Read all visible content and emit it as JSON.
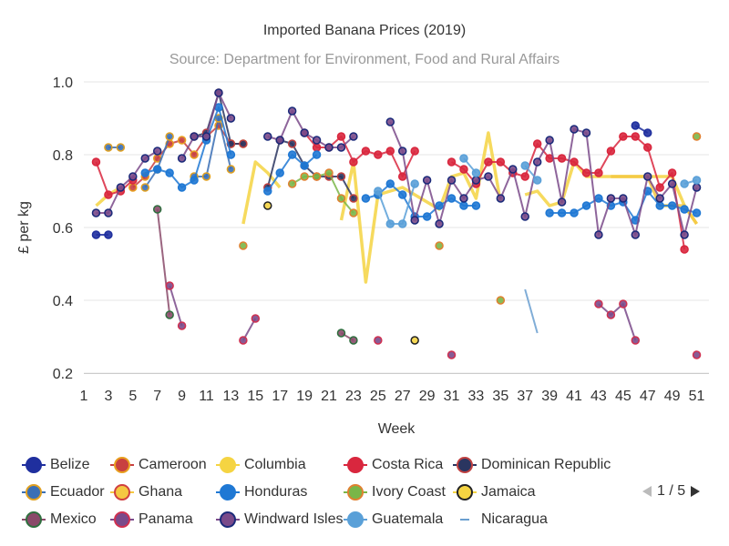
{
  "chart_data": {
    "type": "line",
    "title": "Imported Banana Prices (2019)",
    "subtitle": "Source: Department for Environment, Food and Rural Affairs",
    "xlabel": "Week",
    "ylabel": "£ per kg",
    "x_ticks": [
      1,
      3,
      5,
      7,
      9,
      11,
      13,
      15,
      17,
      19,
      21,
      23,
      25,
      27,
      29,
      31,
      33,
      35,
      37,
      39,
      41,
      43,
      45,
      47,
      49,
      51
    ],
    "y_ticks": [
      "0.2",
      "0.4",
      "0.6",
      "0.8",
      "1.0"
    ],
    "xlim": [
      1,
      52
    ],
    "ylim": [
      0.2,
      1.0
    ],
    "grid": true,
    "legend_position": "bottom",
    "legend_page": "1 / 5",
    "series": [
      {
        "name": "Belize",
        "color": "#1f2f9e",
        "border": "#1f2f9e",
        "data": [
          [
            2,
            0.58
          ],
          [
            3,
            0.58
          ],
          [
            null,
            null
          ],
          [
            46,
            0.88
          ],
          [
            47,
            0.86
          ]
        ]
      },
      {
        "name": "Cameroon",
        "color": "#c84040",
        "border": "#e8a020",
        "data": [
          [
            5,
            0.71
          ],
          [
            6,
            0.74
          ],
          [
            7,
            0.79
          ],
          [
            8,
            0.83
          ],
          [
            9,
            0.84
          ],
          [
            10,
            0.8
          ],
          [
            11,
            0.85
          ],
          [
            12,
            0.88
          ],
          [
            13,
            0.83
          ],
          [
            14,
            0.83
          ]
        ]
      },
      {
        "name": "Columbia",
        "color": "#f5d442",
        "border": "#f5d442",
        "data": [
          [
            2,
            0.66
          ],
          [
            3,
            0.69
          ],
          [
            4,
            0.71
          ],
          [
            null,
            null
          ],
          [
            14,
            0.61
          ],
          [
            15,
            0.78
          ],
          [
            16,
            0.75
          ],
          [
            17,
            0.71
          ],
          [
            null,
            null
          ],
          [
            22,
            0.62
          ],
          [
            23,
            0.78
          ],
          [
            24,
            0.45
          ],
          [
            25,
            0.69
          ],
          [
            26,
            0.7
          ],
          [
            27,
            0.71
          ],
          [
            28,
            0.69
          ],
          [
            29,
            0.67
          ],
          [
            30,
            0.65
          ],
          [
            31,
            0.74
          ],
          [
            32,
            0.75
          ],
          [
            33,
            0.68
          ],
          [
            34,
            0.86
          ],
          [
            35,
            0.67
          ],
          [
            null,
            null
          ],
          [
            37,
            0.69
          ],
          [
            38,
            0.7
          ],
          [
            39,
            0.66
          ],
          [
            40,
            0.67
          ],
          [
            41,
            0.78
          ],
          [
            42,
            0.74
          ],
          [
            43,
            0.74
          ],
          [
            44,
            0.74
          ],
          [
            45,
            0.74
          ],
          [
            46,
            0.74
          ],
          [
            47,
            0.74
          ],
          [
            48,
            0.74
          ],
          [
            49,
            0.74
          ],
          [
            50,
            0.66
          ],
          [
            51,
            0.61
          ]
        ]
      },
      {
        "name": "Costa Rica",
        "color": "#d9273e",
        "border": "#d9273e",
        "data": [
          [
            2,
            0.78
          ],
          [
            3,
            0.69
          ],
          [
            4,
            0.7
          ],
          [
            5,
            0.73
          ],
          [
            null,
            null
          ],
          [
            19,
            0.86
          ],
          [
            20,
            0.82
          ],
          [
            21,
            0.82
          ],
          [
            22,
            0.85
          ],
          [
            23,
            0.78
          ],
          [
            24,
            0.81
          ],
          [
            25,
            0.8
          ],
          [
            26,
            0.81
          ],
          [
            27,
            0.74
          ],
          [
            28,
            0.81
          ],
          [
            null,
            null
          ],
          [
            31,
            0.78
          ],
          [
            32,
            0.76
          ],
          [
            33,
            0.72
          ],
          [
            34,
            0.78
          ],
          [
            35,
            0.78
          ],
          [
            36,
            0.75
          ],
          [
            37,
            0.74
          ],
          [
            38,
            0.83
          ],
          [
            39,
            0.79
          ],
          [
            40,
            0.79
          ],
          [
            41,
            0.78
          ],
          [
            42,
            0.75
          ],
          [
            43,
            0.75
          ],
          [
            44,
            0.81
          ],
          [
            45,
            0.85
          ],
          [
            46,
            0.85
          ],
          [
            47,
            0.82
          ],
          [
            48,
            0.71
          ],
          [
            49,
            0.75
          ],
          [
            50,
            0.54
          ]
        ]
      },
      {
        "name": "Dominican Republic",
        "color": "#2a3560",
        "border": "#c04040",
        "data": [
          [
            10,
            0.85
          ],
          [
            11,
            0.86
          ],
          [
            12,
            0.97
          ],
          [
            13,
            0.83
          ],
          [
            14,
            0.83
          ],
          [
            null,
            null
          ],
          [
            16,
            0.71
          ],
          [
            17,
            0.84
          ],
          [
            18,
            0.83
          ],
          [
            19,
            0.77
          ],
          [
            20,
            0.74
          ],
          [
            21,
            0.74
          ],
          [
            22,
            0.74
          ],
          [
            23,
            0.68
          ]
        ]
      },
      {
        "name": "Ecuador",
        "color": "#3a6fb5",
        "border": "#e0a020",
        "data": [
          [
            3,
            0.82
          ],
          [
            4,
            0.82
          ],
          [
            null,
            null
          ],
          [
            6,
            0.71
          ],
          [
            7,
            0.76
          ],
          [
            8,
            0.85
          ],
          [
            null,
            null
          ],
          [
            10,
            0.74
          ],
          [
            11,
            0.74
          ],
          [
            12,
            0.9
          ],
          [
            13,
            0.76
          ]
        ]
      },
      {
        "name": "Ghana",
        "color": "#f5c842",
        "border": "#d04040",
        "data": [
          [
            44,
            0.74
          ],
          [
            45,
            0.74
          ],
          [
            46,
            0.74
          ],
          [
            47,
            0.74
          ],
          [
            48,
            0.66
          ],
          [
            49,
            0.66
          ],
          [
            50,
            0.66
          ],
          [
            51,
            0.61
          ]
        ]
      },
      {
        "name": "Honduras",
        "color": "#1f78d4",
        "border": "#1f78d4",
        "data": [
          [
            6,
            0.75
          ],
          [
            7,
            0.76
          ],
          [
            8,
            0.75
          ],
          [
            9,
            0.71
          ],
          [
            10,
            0.73
          ],
          [
            11,
            0.84
          ],
          [
            12,
            0.93
          ],
          [
            13,
            0.8
          ],
          [
            null,
            null
          ],
          [
            16,
            0.7
          ],
          [
            17,
            0.75
          ],
          [
            18,
            0.8
          ],
          [
            19,
            0.77
          ],
          [
            20,
            0.8
          ],
          [
            null,
            null
          ],
          [
            24,
            0.68
          ],
          [
            25,
            0.69
          ],
          [
            26,
            0.72
          ],
          [
            27,
            0.69
          ],
          [
            28,
            0.63
          ],
          [
            29,
            0.63
          ],
          [
            30,
            0.66
          ],
          [
            31,
            0.68
          ],
          [
            32,
            0.66
          ],
          [
            33,
            0.66
          ],
          [
            null,
            null
          ],
          [
            39,
            0.64
          ],
          [
            40,
            0.64
          ],
          [
            41,
            0.64
          ],
          [
            42,
            0.66
          ],
          [
            43,
            0.68
          ],
          [
            44,
            0.66
          ],
          [
            45,
            0.67
          ],
          [
            46,
            0.62
          ],
          [
            47,
            0.7
          ],
          [
            48,
            0.66
          ],
          [
            49,
            0.66
          ],
          [
            50,
            0.65
          ],
          [
            51,
            0.64
          ]
        ]
      },
      {
        "name": "Ivory Coast",
        "color": "#7ab648",
        "border": "#e08030",
        "data": [
          [
            14,
            0.55
          ],
          [
            null,
            null
          ],
          [
            18,
            0.72
          ],
          [
            19,
            0.74
          ],
          [
            20,
            0.74
          ],
          [
            21,
            0.75
          ],
          [
            22,
            0.68
          ],
          [
            23,
            0.64
          ],
          [
            null,
            null
          ],
          [
            30,
            0.55
          ],
          [
            null,
            null
          ],
          [
            35,
            0.4
          ],
          [
            null,
            null
          ],
          [
            51,
            0.85
          ]
        ]
      },
      {
        "name": "Jamaica",
        "color": "#f5d442",
        "border": "#222222",
        "data": [
          [
            16,
            0.66
          ],
          [
            null,
            null
          ],
          [
            28,
            0.29
          ]
        ]
      },
      {
        "name": "Mexico",
        "color": "#8a4a6a",
        "border": "#2f6f3f",
        "data": [
          [
            7,
            0.65
          ],
          [
            8,
            0.36
          ],
          [
            null,
            null
          ],
          [
            22,
            0.31
          ],
          [
            23,
            0.29
          ]
        ]
      },
      {
        "name": "Panama",
        "color": "#7a4a8a",
        "border": "#d03050",
        "data": [
          [
            8,
            0.44
          ],
          [
            9,
            0.33
          ],
          [
            null,
            null
          ],
          [
            14,
            0.29
          ],
          [
            15,
            0.35
          ],
          [
            null,
            null
          ],
          [
            25,
            0.29
          ],
          [
            null,
            null
          ],
          [
            31,
            0.25
          ],
          [
            null,
            null
          ],
          [
            43,
            0.39
          ],
          [
            44,
            0.36
          ],
          [
            45,
            0.39
          ],
          [
            46,
            0.29
          ],
          [
            null,
            null
          ],
          [
            51,
            0.25
          ]
        ]
      },
      {
        "name": "Windward Isles",
        "color": "#7a4a8a",
        "border": "#1a2a7a",
        "data": [
          [
            2,
            0.64
          ],
          [
            3,
            0.64
          ],
          [
            4,
            0.71
          ],
          [
            5,
            0.74
          ],
          [
            6,
            0.79
          ],
          [
            7,
            0.81
          ],
          [
            null,
            null
          ],
          [
            9,
            0.79
          ],
          [
            10,
            0.85
          ],
          [
            11,
            0.85
          ],
          [
            12,
            0.97
          ],
          [
            13,
            0.9
          ],
          [
            null,
            null
          ],
          [
            16,
            0.85
          ],
          [
            17,
            0.84
          ],
          [
            18,
            0.92
          ],
          [
            19,
            0.86
          ],
          [
            20,
            0.84
          ],
          [
            21,
            0.82
          ],
          [
            22,
            0.82
          ],
          [
            23,
            0.85
          ],
          [
            null,
            null
          ],
          [
            26,
            0.89
          ],
          [
            27,
            0.81
          ],
          [
            28,
            0.62
          ],
          [
            29,
            0.73
          ],
          [
            30,
            0.61
          ],
          [
            31,
            0.73
          ],
          [
            32,
            0.68
          ],
          [
            33,
            0.73
          ],
          [
            34,
            0.74
          ],
          [
            35,
            0.68
          ],
          [
            36,
            0.76
          ],
          [
            37,
            0.63
          ],
          [
            38,
            0.78
          ],
          [
            39,
            0.84
          ],
          [
            40,
            0.67
          ],
          [
            41,
            0.87
          ],
          [
            42,
            0.86
          ],
          [
            43,
            0.58
          ],
          [
            44,
            0.68
          ],
          [
            45,
            0.68
          ],
          [
            46,
            0.58
          ],
          [
            47,
            0.74
          ],
          [
            48,
            0.68
          ],
          [
            49,
            0.72
          ],
          [
            50,
            0.58
          ],
          [
            51,
            0.71
          ]
        ]
      },
      {
        "name": "Guatemala",
        "color": "#5aa0d8",
        "border": "#5aa0d8",
        "data": [
          [
            25,
            0.7
          ],
          [
            26,
            0.61
          ],
          [
            27,
            0.61
          ],
          [
            28,
            0.72
          ],
          [
            null,
            null
          ],
          [
            32,
            0.79
          ],
          [
            33,
            0.75
          ],
          [
            null,
            null
          ],
          [
            37,
            0.77
          ],
          [
            38,
            0.73
          ],
          [
            null,
            null
          ],
          [
            50,
            0.72
          ],
          [
            51,
            0.73
          ]
        ]
      },
      {
        "name": "Nicaragua",
        "color": "#6a9fd0",
        "border": "#6a9fd0",
        "data": [
          [
            37,
            0.43
          ],
          [
            38,
            0.31
          ]
        ]
      }
    ]
  }
}
